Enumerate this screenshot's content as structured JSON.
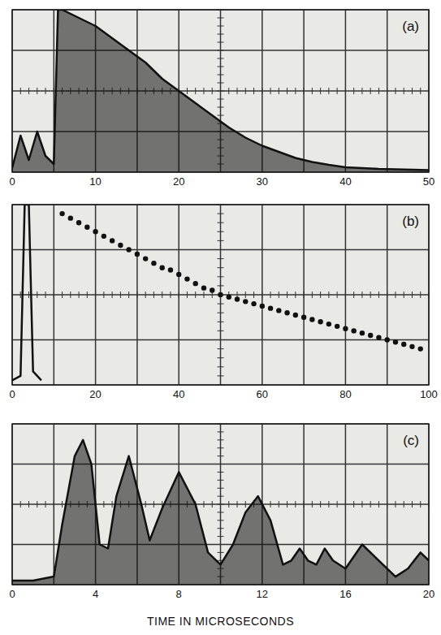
{
  "chart_data": [
    {
      "type": "area",
      "title": "(a)",
      "xlim": [
        0,
        50
      ],
      "xticks": [
        0,
        10,
        20,
        30,
        40,
        50
      ],
      "ylim": [
        0,
        4
      ],
      "yticks": [
        0,
        1,
        2,
        3,
        4
      ],
      "grid": true,
      "tick_labels": "x",
      "series": [
        {
          "color": "#111111",
          "x": [
            0,
            1,
            2,
            3,
            4,
            5,
            5.5,
            6,
            8,
            10,
            12,
            14,
            16,
            18,
            20,
            22,
            24,
            26,
            28,
            30,
            32,
            34,
            36,
            38,
            40,
            42,
            44,
            46,
            48,
            50
          ],
          "values": [
            0.1,
            0.9,
            0.3,
            1.0,
            0.4,
            0.2,
            4.0,
            4.0,
            3.8,
            3.6,
            3.3,
            3.0,
            2.7,
            2.3,
            2.0,
            1.7,
            1.4,
            1.1,
            0.85,
            0.65,
            0.5,
            0.35,
            0.25,
            0.18,
            0.12,
            0.1,
            0.08,
            0.07,
            0.06,
            0.05
          ]
        }
      ]
    },
    {
      "type": "scatter",
      "title": "(b)",
      "xlim": [
        0,
        100
      ],
      "xticks": [
        0,
        20,
        40,
        60,
        80,
        100
      ],
      "ylim": [
        0,
        4
      ],
      "yticks": [
        0,
        1,
        2,
        3,
        4
      ],
      "grid": true,
      "tick_labels": "x",
      "series": [
        {
          "type": "line",
          "color": "#111111",
          "x": [
            0,
            2,
            3,
            4,
            5,
            7
          ],
          "values": [
            0.1,
            0.2,
            4.0,
            4.0,
            0.3,
            0.1
          ]
        },
        {
          "type": "scatter",
          "marker": "circle",
          "color": "#111111",
          "x": [
            12,
            14,
            16,
            18,
            20,
            22,
            24,
            26,
            28,
            30,
            32,
            34,
            36,
            38,
            40,
            42,
            44,
            46,
            48,
            50,
            52,
            54,
            56,
            58,
            60,
            62,
            64,
            66,
            68,
            70,
            72,
            74,
            76,
            78,
            80,
            82,
            84,
            86,
            88,
            90,
            92,
            94,
            96,
            98
          ],
          "values": [
            3.8,
            3.7,
            3.6,
            3.5,
            3.4,
            3.3,
            3.2,
            3.1,
            3.0,
            2.9,
            2.8,
            2.7,
            2.6,
            2.55,
            2.45,
            2.35,
            2.25,
            2.15,
            2.1,
            2.0,
            1.95,
            1.9,
            1.85,
            1.8,
            1.75,
            1.7,
            1.65,
            1.6,
            1.55,
            1.5,
            1.45,
            1.4,
            1.35,
            1.3,
            1.25,
            1.2,
            1.15,
            1.1,
            1.05,
            1.0,
            0.95,
            0.9,
            0.85,
            0.8
          ]
        }
      ]
    },
    {
      "type": "area",
      "title": "(c)",
      "xlabel": "TIME IN MICROSECONDS",
      "xlim": [
        0,
        20
      ],
      "xticks": [
        0,
        4,
        8,
        12,
        16,
        20
      ],
      "ylim": [
        0,
        4
      ],
      "yticks": [
        0,
        1,
        2,
        3,
        4
      ],
      "grid": true,
      "tick_labels": "x",
      "series": [
        {
          "color": "#111111",
          "x": [
            0,
            1,
            2,
            2.4,
            3,
            3.4,
            3.8,
            4.2,
            4.6,
            5,
            5.6,
            6.2,
            6.6,
            7.2,
            8,
            8.8,
            9.4,
            10,
            10.6,
            11.2,
            11.8,
            12.4,
            13,
            13.4,
            13.8,
            14.2,
            14.6,
            15,
            15.4,
            16,
            16.8,
            17.6,
            18.4,
            19,
            19.6,
            20
          ],
          "values": [
            0.1,
            0.1,
            0.2,
            1.5,
            3.2,
            3.6,
            3.0,
            1.0,
            0.9,
            2.2,
            3.2,
            2.0,
            1.1,
            1.9,
            2.8,
            2.0,
            0.8,
            0.5,
            1.0,
            1.8,
            2.2,
            1.6,
            0.5,
            0.6,
            0.9,
            0.6,
            0.5,
            0.9,
            0.6,
            0.4,
            1.0,
            0.6,
            0.2,
            0.4,
            0.8,
            0.6
          ]
        }
      ]
    }
  ]
}
